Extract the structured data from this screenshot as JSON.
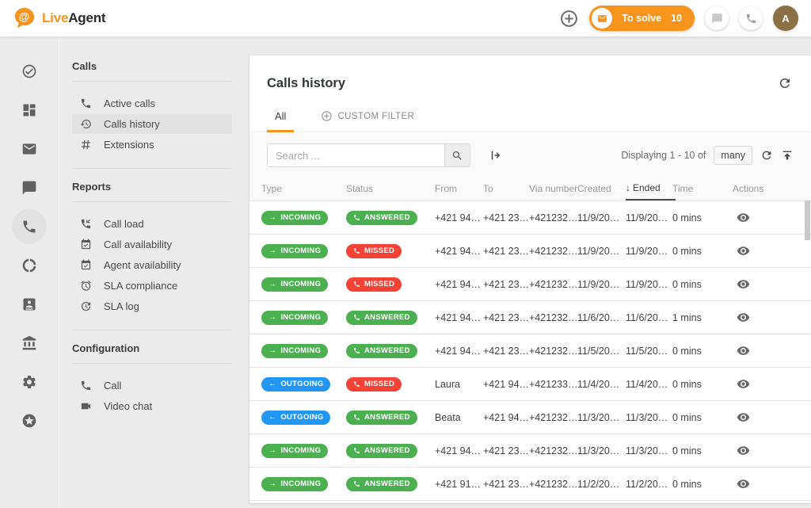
{
  "colors": {
    "accent": "#f6941d",
    "green": "#4caf50",
    "blue": "#2196f3",
    "red": "#f44336",
    "avatar": "#8c7045"
  },
  "topbar": {
    "brand": {
      "live": "Live",
      "agent": "Agent"
    },
    "to_solve": {
      "label": "To solve",
      "count": "10"
    },
    "avatar_initial": "A",
    "icons": [
      "add-circle-icon",
      "envelope-icon",
      "chat-icon",
      "phone-icon"
    ]
  },
  "rail": {
    "items": [
      {
        "name": "resolve",
        "icon": "check-circle",
        "active": false
      },
      {
        "name": "dashboard",
        "icon": "dashboard",
        "active": false
      },
      {
        "name": "tickets",
        "icon": "mail",
        "active": false
      },
      {
        "name": "chats",
        "icon": "chat",
        "active": false
      },
      {
        "name": "calls",
        "icon": "phone",
        "active": true
      },
      {
        "name": "social",
        "icon": "donut",
        "active": false
      },
      {
        "name": "contacts",
        "icon": "contact",
        "active": false
      },
      {
        "name": "academy",
        "icon": "bank",
        "active": false
      },
      {
        "name": "settings",
        "icon": "gear",
        "active": false
      },
      {
        "name": "upgrade",
        "icon": "star-circle",
        "active": false
      }
    ]
  },
  "sidebar": {
    "sections": [
      {
        "title": "Calls",
        "items": [
          {
            "label": "Active calls",
            "icon": "phone",
            "active": false
          },
          {
            "label": "Calls history",
            "icon": "history",
            "active": true
          },
          {
            "label": "Extensions",
            "icon": "hash",
            "active": false
          }
        ]
      },
      {
        "title": "Reports",
        "items": [
          {
            "label": "Call load",
            "icon": "call-load",
            "active": false
          },
          {
            "label": "Call availability",
            "icon": "cal-check",
            "active": false
          },
          {
            "label": "Agent availability",
            "icon": "cal-check",
            "active": false
          },
          {
            "label": "SLA compliance",
            "icon": "alarm",
            "active": false
          },
          {
            "label": "SLA log",
            "icon": "update",
            "active": false
          }
        ]
      },
      {
        "title": "Configuration",
        "items": [
          {
            "label": "Call",
            "icon": "phone",
            "active": false
          },
          {
            "label": "Video chat",
            "icon": "videocam",
            "active": false
          }
        ]
      }
    ]
  },
  "main": {
    "title": "Calls history",
    "tabs": [
      {
        "label": "All",
        "active": true
      },
      {
        "label": "CUSTOM FILTER",
        "active": false,
        "icon": "add-circle"
      }
    ],
    "toolbar": {
      "search_placeholder": "Search ...",
      "displaying_text": "Displaying 1 - 10 of",
      "count_chip": "many"
    },
    "table": {
      "columns": [
        "Type",
        "Status",
        "From",
        "To",
        "Via number",
        "Created",
        "Ended",
        "Time",
        "Actions"
      ],
      "sort_column": "Ended",
      "sort_direction": "desc",
      "sort_arrow": "↓",
      "badge_arrows": {
        "incoming": "→",
        "outgoing": "←"
      },
      "rows": [
        {
          "type": "INCOMING",
          "type_kind": "incoming",
          "status": "ANSWERED",
          "status_kind": "answered",
          "from": "+421 94…",
          "to": "+421 23…",
          "via": "+421232…",
          "created": "11/9/20…",
          "ended": "11/9/20…",
          "time": "0 mins"
        },
        {
          "type": "INCOMING",
          "type_kind": "incoming",
          "status": "MISSED",
          "status_kind": "missed",
          "from": "+421 94…",
          "to": "+421 23…",
          "via": "+421232…",
          "created": "11/9/20…",
          "ended": "11/9/20…",
          "time": "0 mins"
        },
        {
          "type": "INCOMING",
          "type_kind": "incoming",
          "status": "MISSED",
          "status_kind": "missed",
          "from": "+421 94…",
          "to": "+421 23…",
          "via": "+421232…",
          "created": "11/9/20…",
          "ended": "11/9/20…",
          "time": "0 mins"
        },
        {
          "type": "INCOMING",
          "type_kind": "incoming",
          "status": "ANSWERED",
          "status_kind": "answered",
          "from": "+421 94…",
          "to": "+421 23…",
          "via": "+421232…",
          "created": "11/6/20…",
          "ended": "11/6/20…",
          "time": "1 mins"
        },
        {
          "type": "INCOMING",
          "type_kind": "incoming",
          "status": "ANSWERED",
          "status_kind": "answered",
          "from": "+421 94…",
          "to": "+421 23…",
          "via": "+421232…",
          "created": "11/5/20…",
          "ended": "11/5/20…",
          "time": "0 mins"
        },
        {
          "type": "OUTGOING",
          "type_kind": "outgoing",
          "status": "MISSED",
          "status_kind": "missed",
          "from": "Laura",
          "to": "+421 94…",
          "via": "+421233…",
          "created": "11/4/20…",
          "ended": "11/4/20…",
          "time": "0 mins"
        },
        {
          "type": "OUTGOING",
          "type_kind": "outgoing",
          "status": "ANSWERED",
          "status_kind": "answered",
          "from": "Beata",
          "to": "+421 94…",
          "via": "+421232…",
          "created": "11/3/20…",
          "ended": "11/3/20…",
          "time": "0 mins"
        },
        {
          "type": "INCOMING",
          "type_kind": "incoming",
          "status": "ANSWERED",
          "status_kind": "answered",
          "from": "+421 94…",
          "to": "+421 23…",
          "via": "+421232…",
          "created": "11/3/20…",
          "ended": "11/3/20…",
          "time": "0 mins"
        },
        {
          "type": "INCOMING",
          "type_kind": "incoming",
          "status": "ANSWERED",
          "status_kind": "answered",
          "from": "+421 91…",
          "to": "+421 23…",
          "via": "+421232…",
          "created": "11/2/20…",
          "ended": "11/2/20…",
          "time": "0 mins"
        }
      ]
    }
  }
}
